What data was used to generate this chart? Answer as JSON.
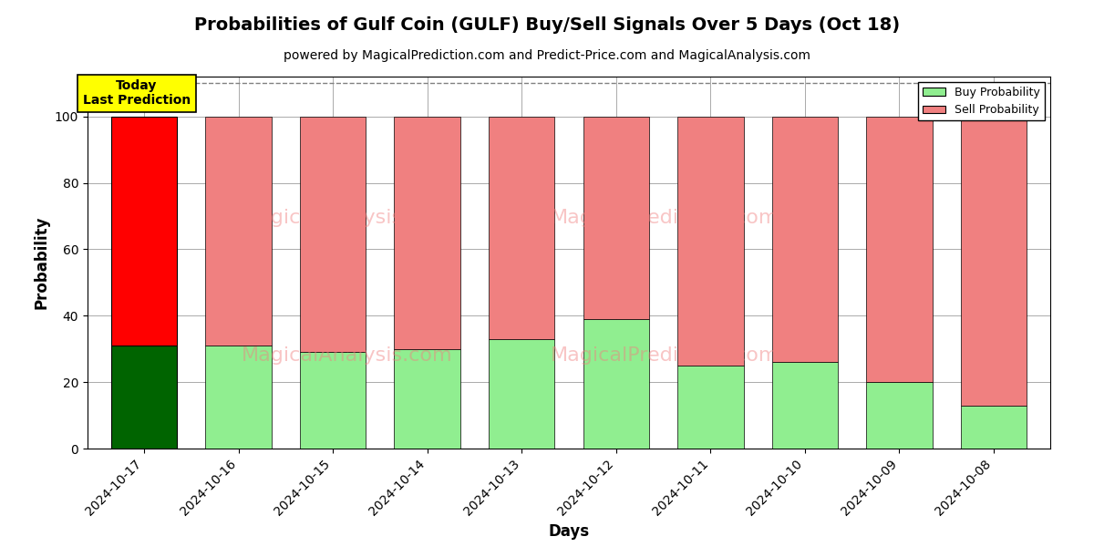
{
  "title": "Probabilities of Gulf Coin (GULF) Buy/Sell Signals Over 5 Days (Oct 18)",
  "subtitle": "powered by MagicalPrediction.com and Predict-Price.com and MagicalAnalysis.com",
  "xlabel": "Days",
  "ylabel": "Probability",
  "dates": [
    "2024-10-17",
    "2024-10-16",
    "2024-10-15",
    "2024-10-14",
    "2024-10-13",
    "2024-10-12",
    "2024-10-11",
    "2024-10-10",
    "2024-10-09",
    "2024-10-08"
  ],
  "buy_values": [
    31,
    31,
    29,
    30,
    33,
    39,
    25,
    26,
    20,
    13
  ],
  "sell_values": [
    69,
    69,
    71,
    70,
    67,
    61,
    75,
    74,
    80,
    87
  ],
  "today_index": 0,
  "today_buy_color": "#006400",
  "today_sell_color": "#ff0000",
  "other_buy_color": "#90ee90",
  "other_sell_color": "#f08080",
  "today_label_bg": "#ffff00",
  "today_label_text": "Today\nLast Prediction",
  "legend_buy_label": "Buy Probability",
  "legend_sell_label": "Sell Probability",
  "ylim": [
    0,
    112
  ],
  "dashed_line_y": 110,
  "bg_color": "#ffffff",
  "grid_color": "#aaaaaa",
  "title_fontsize": 14,
  "subtitle_fontsize": 10,
  "axis_label_fontsize": 12,
  "tick_fontsize": 10,
  "watermark1_text": "MagicalAnalysis.com",
  "watermark2_text": "MagicalPrediction.com",
  "watermark_color": "#f08080",
  "watermark_alpha": 0.45,
  "watermark_fontsize": 16
}
